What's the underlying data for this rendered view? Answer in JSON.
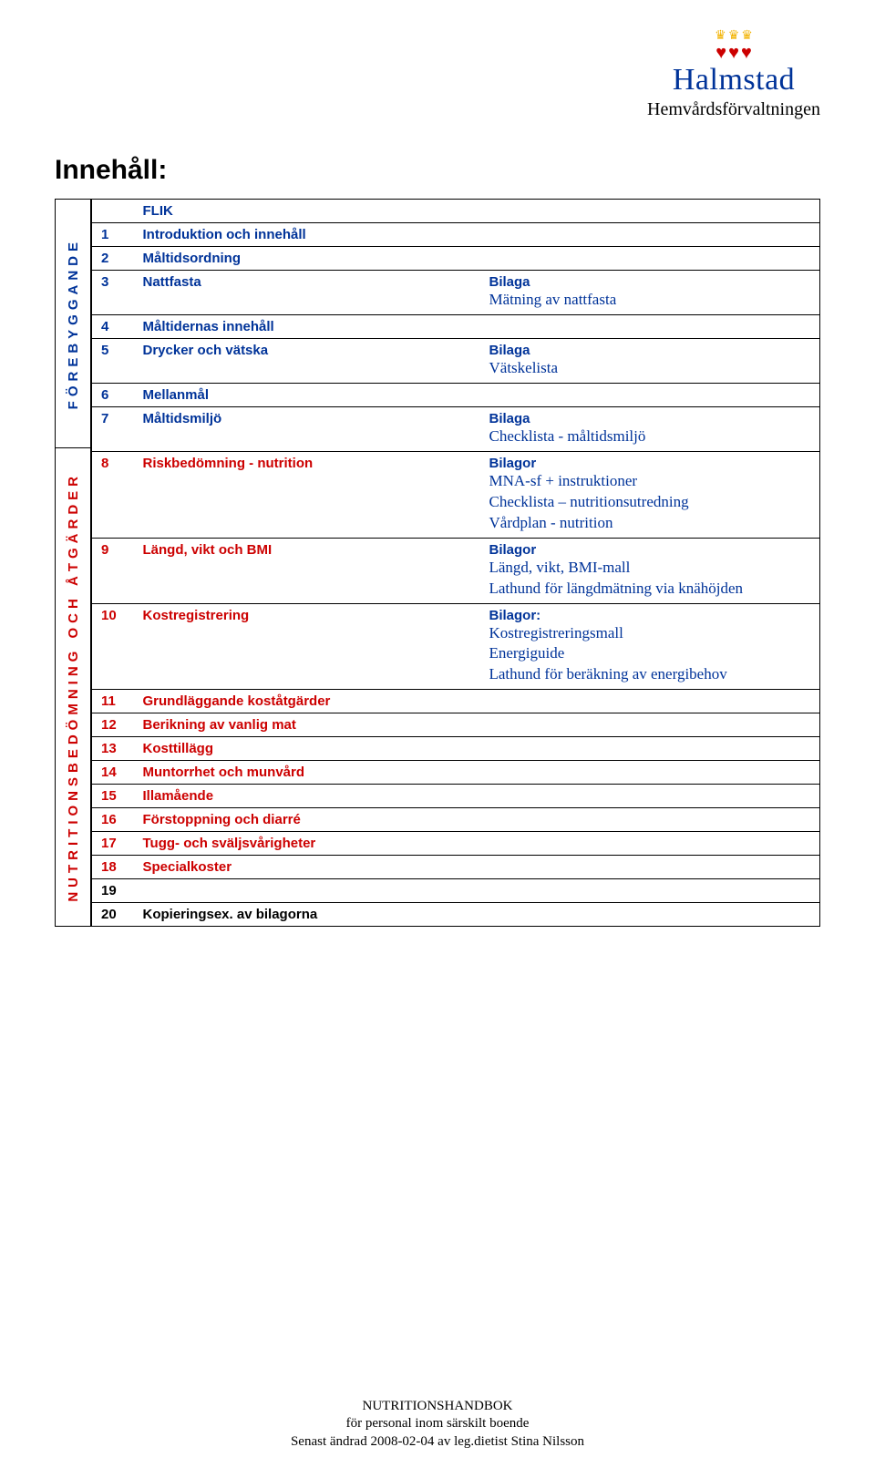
{
  "brand": {
    "crown_color": "#f2b200",
    "heart_color": "#cc0000",
    "name": "Halmstad",
    "name_color": "#003399",
    "sub": "Hemvårdsförvaltningen",
    "sub_color": "#000000"
  },
  "title": "Innehåll:",
  "sidebar": {
    "top": "FÖREBYGGANDE",
    "bottom": "NUTRITIONSBEDÖMNING OCH ÅTGÄRDER"
  },
  "colors": {
    "nav": "#003399",
    "red": "#cc0000",
    "black": "#000000"
  },
  "header_label": "FLIK",
  "rows": [
    {
      "num": "1",
      "label": "Introduktion och innehåll",
      "color": "nav",
      "bilaga_head": "",
      "bilaga_lines": []
    },
    {
      "num": "2",
      "label": "Måltidsordning",
      "color": "nav",
      "bilaga_head": "",
      "bilaga_lines": []
    },
    {
      "num": "3",
      "label": "Nattfasta",
      "color": "nav",
      "bilaga_head": "Bilaga",
      "bilaga_lines": [
        "Mätning av nattfasta"
      ]
    },
    {
      "num": "4",
      "label": "Måltidernas innehåll",
      "color": "nav",
      "bilaga_head": "",
      "bilaga_lines": []
    },
    {
      "num": "5",
      "label": "Drycker och vätska",
      "color": "nav",
      "bilaga_head": "Bilaga",
      "bilaga_lines": [
        "Vätskelista"
      ]
    },
    {
      "num": "6",
      "label": "Mellanmål",
      "color": "nav",
      "bilaga_head": "",
      "bilaga_lines": []
    },
    {
      "num": "7",
      "label": "Måltidsmiljö",
      "color": "nav",
      "bilaga_head": "Bilaga",
      "bilaga_lines": [
        "Checklista - måltidsmiljö"
      ]
    },
    {
      "num": "8",
      "label": "Riskbedömning - nutrition",
      "color": "red",
      "bilaga_head": "Bilagor",
      "bilaga_lines": [
        "MNA-sf + instruktioner",
        "Checklista – nutritionsutredning",
        "Vårdplan - nutrition"
      ]
    },
    {
      "num": "9",
      "label": "Längd, vikt och BMI",
      "color": "red",
      "bilaga_head": "Bilagor",
      "bilaga_lines": [
        "Längd, vikt, BMI-mall",
        "Lathund för längdmätning via knähöjden"
      ]
    },
    {
      "num": "10",
      "label": "Kostregistrering",
      "color": "red",
      "bilaga_head": "Bilagor:",
      "bilaga_lines": [
        "Kostregistreringsmall",
        "Energiguide",
        "Lathund för beräkning av energibehov"
      ]
    },
    {
      "num": "11",
      "label": "Grundläggande koståtgärder",
      "color": "red",
      "bilaga_head": "",
      "bilaga_lines": []
    },
    {
      "num": "12",
      "label": "Berikning av vanlig mat",
      "color": "red",
      "bilaga_head": "",
      "bilaga_lines": []
    },
    {
      "num": "13",
      "label": "Kosttillägg",
      "color": "red",
      "bilaga_head": "",
      "bilaga_lines": []
    },
    {
      "num": "14",
      "label": "Muntorrhet och munvård",
      "color": "red",
      "bilaga_head": "",
      "bilaga_lines": []
    },
    {
      "num": "15",
      "label": "Illamående",
      "color": "red",
      "bilaga_head": "",
      "bilaga_lines": []
    },
    {
      "num": "16",
      "label": "Förstoppning och diarré",
      "color": "red",
      "bilaga_head": "",
      "bilaga_lines": []
    },
    {
      "num": "17",
      "label": "Tugg- och sväljsvårigheter",
      "color": "red",
      "bilaga_head": "",
      "bilaga_lines": []
    },
    {
      "num": "18",
      "label": "Specialkoster",
      "color": "red",
      "bilaga_head": "",
      "bilaga_lines": []
    },
    {
      "num": "19",
      "label": "",
      "color": "black",
      "bilaga_head": "",
      "bilaga_lines": []
    },
    {
      "num": "20",
      "label": "Kopieringsex. av bilagorna",
      "color": "black",
      "bilaga_head": "",
      "bilaga_lines": []
    }
  ],
  "footer": {
    "line1": "NUTRITIONSHANDBOK",
    "line2": "för personal inom särskilt boende",
    "line3": "Senast ändrad 2008-02-04 av leg.dietist Stina Nilsson"
  }
}
